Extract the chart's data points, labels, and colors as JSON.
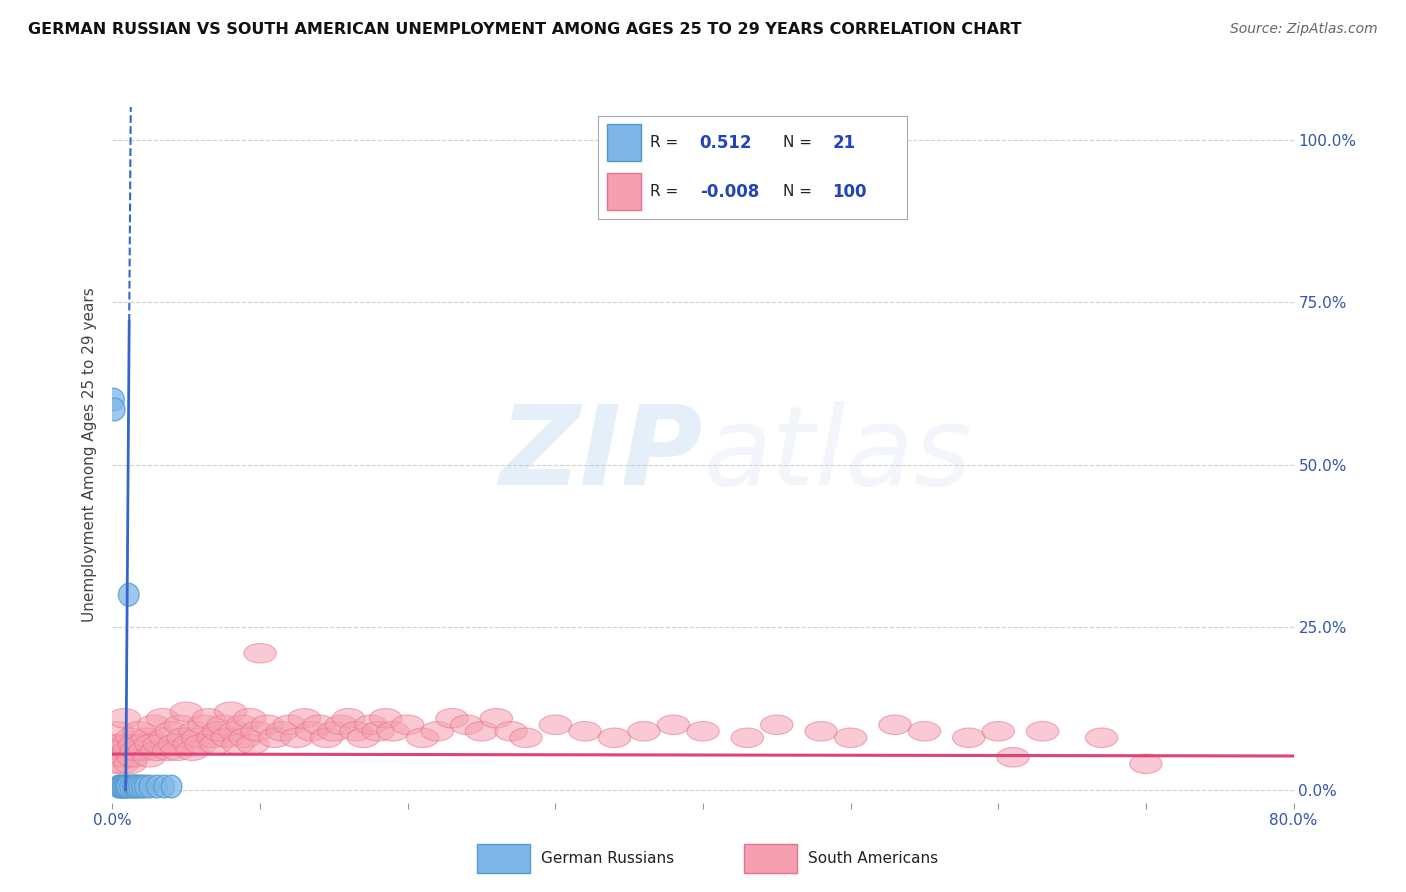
{
  "title": "GERMAN RUSSIAN VS SOUTH AMERICAN UNEMPLOYMENT AMONG AGES 25 TO 29 YEARS CORRELATION CHART",
  "source": "Source: ZipAtlas.com",
  "ylabel": "Unemployment Among Ages 25 to 29 years",
  "xlim": [
    0.0,
    0.8
  ],
  "ylim": [
    -0.02,
    1.05
  ],
  "y_ticks": [
    0.0,
    0.25,
    0.5,
    0.75,
    1.0
  ],
  "y_tick_labels": [
    "0.0%",
    "25.0%",
    "50.0%",
    "75.0%",
    "100.0%"
  ],
  "blue_color": "#7EB6E8",
  "blue_edge": "#5599CC",
  "pink_color": "#F5A0B0",
  "pink_edge": "#E87090",
  "line_blue": "#3366CC",
  "line_pink": "#DD4477",
  "r_blue": "0.512",
  "n_blue": "21",
  "r_pink": "-0.008",
  "n_pink": "100",
  "blue_x": [
    0.001,
    0.0015,
    0.004,
    0.005,
    0.006,
    0.007,
    0.008,
    0.009,
    0.01,
    0.011,
    0.012,
    0.014,
    0.015,
    0.016,
    0.018,
    0.02,
    0.022,
    0.025,
    0.03,
    0.035,
    0.04
  ],
  "blue_y": [
    0.6,
    0.585,
    0.005,
    0.005,
    0.005,
    0.005,
    0.005,
    0.005,
    0.005,
    0.3,
    0.005,
    0.005,
    0.005,
    0.005,
    0.005,
    0.005,
    0.005,
    0.005,
    0.005,
    0.005,
    0.005
  ],
  "pink_x": [
    0.001,
    0.002,
    0.003,
    0.004,
    0.005,
    0.006,
    0.007,
    0.008,
    0.009,
    0.01,
    0.011,
    0.012,
    0.013,
    0.014,
    0.015,
    0.016,
    0.018,
    0.02,
    0.022,
    0.024,
    0.025,
    0.026,
    0.028,
    0.03,
    0.032,
    0.034,
    0.036,
    0.038,
    0.04,
    0.042,
    0.044,
    0.046,
    0.048,
    0.05,
    0.052,
    0.054,
    0.056,
    0.058,
    0.06,
    0.062,
    0.065,
    0.068,
    0.07,
    0.072,
    0.075,
    0.078,
    0.08,
    0.083,
    0.085,
    0.088,
    0.09,
    0.093,
    0.095,
    0.098,
    0.1,
    0.105,
    0.11,
    0.115,
    0.12,
    0.125,
    0.13,
    0.135,
    0.14,
    0.145,
    0.15,
    0.155,
    0.16,
    0.165,
    0.17,
    0.175,
    0.18,
    0.185,
    0.19,
    0.2,
    0.21,
    0.22,
    0.23,
    0.24,
    0.25,
    0.26,
    0.27,
    0.28,
    0.3,
    0.32,
    0.34,
    0.36,
    0.38,
    0.4,
    0.43,
    0.45,
    0.48,
    0.5,
    0.53,
    0.55,
    0.58,
    0.6,
    0.61,
    0.63,
    0.67,
    0.7
  ],
  "pink_y": [
    0.07,
    0.04,
    0.09,
    0.05,
    0.07,
    0.06,
    0.04,
    0.11,
    0.05,
    0.07,
    0.06,
    0.04,
    0.08,
    0.05,
    0.07,
    0.06,
    0.09,
    0.07,
    0.06,
    0.08,
    0.05,
    0.07,
    0.1,
    0.06,
    0.07,
    0.11,
    0.08,
    0.06,
    0.09,
    0.07,
    0.06,
    0.1,
    0.08,
    0.12,
    0.07,
    0.06,
    0.09,
    0.08,
    0.07,
    0.1,
    0.11,
    0.08,
    0.07,
    0.09,
    0.1,
    0.08,
    0.12,
    0.09,
    0.07,
    0.1,
    0.08,
    0.11,
    0.07,
    0.09,
    0.21,
    0.1,
    0.08,
    0.09,
    0.1,
    0.08,
    0.11,
    0.09,
    0.1,
    0.08,
    0.09,
    0.1,
    0.11,
    0.09,
    0.08,
    0.1,
    0.09,
    0.11,
    0.09,
    0.1,
    0.08,
    0.09,
    0.11,
    0.1,
    0.09,
    0.11,
    0.09,
    0.08,
    0.1,
    0.09,
    0.08,
    0.09,
    0.1,
    0.09,
    0.08,
    0.1,
    0.09,
    0.08,
    0.1,
    0.09,
    0.08,
    0.09,
    0.05,
    0.09,
    0.08,
    0.04
  ],
  "grid_color": "#CCCCCC",
  "bg_color": "#FFFFFF",
  "watermark_zip": "ZIP",
  "watermark_atlas": "atlas"
}
